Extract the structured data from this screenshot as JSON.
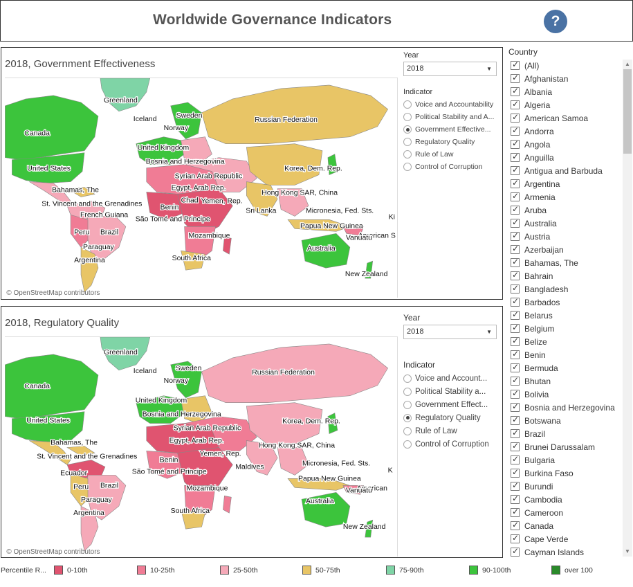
{
  "header": {
    "title": "Worldwide Governance Indicators",
    "help": "?"
  },
  "colors": {
    "p0_10": "#e05470",
    "p10_25": "#f07c95",
    "p25_50": "#f5a9b8",
    "p50_75": "#e8c566",
    "p75_90": "#7fd4a6",
    "p90_100": "#3cc43c",
    "over100": "#2a8a2a",
    "help": "#4a72a4"
  },
  "panels": [
    {
      "title": "2018, Government Effectiveness",
      "year_label": "Year",
      "year_value": "2018",
      "indicator_label": "Indicator",
      "indicators": [
        {
          "label": "Voice and Accountability",
          "selected": false
        },
        {
          "label": "Political Stability and A...",
          "selected": false
        },
        {
          "label": "Government Effective...",
          "selected": true
        },
        {
          "label": "Regulatory Quality",
          "selected": false
        },
        {
          "label": "Rule of Law",
          "selected": false
        },
        {
          "label": "Control of Corruption",
          "selected": false
        }
      ],
      "map_labels": {
        "greenland": "Greenland",
        "iceland": "Iceland",
        "sweden": "Sweden",
        "norway": "Norway",
        "canada": "Canada",
        "russia": "Russian Federation",
        "uk": "United Kingdom",
        "bosnia": "Bosnia and Herzegovina",
        "usa": "United States",
        "syria": "Syrian Arab Republic",
        "korea": "Korea, Dem. Rep.",
        "egypt": "Egypt, Arab Rep.",
        "bahamas": "Bahamas, The",
        "stvincent": "St. Vincent and the Grenadines",
        "chad": "Chad",
        "yemen": "Yemen, Rep.",
        "hongkong": "Hong Kong SAR, China",
        "benin": "Benin",
        "srilanka": "Sri Lanka",
        "micronesia": "Micronesia, Fed. Sts.",
        "frguiana": "French Guiana",
        "ki": "Ki",
        "peru": "Peru",
        "brazil": "Brazil",
        "saotome": "São Tomé and Principe",
        "png": "Papua New Guinea",
        "amsamoa": "American S",
        "vanuatu": "Vanuatu",
        "paraguay": "Paraguay",
        "mozambique": "Mozambique",
        "australia": "Australia",
        "argentina": "Argentina",
        "southafrica": "South Africa",
        "nz": "New Zealand"
      },
      "attribution": "© OpenStreetMap contributors"
    },
    {
      "title": "2018, Regulatory Quality",
      "year_label": "Year",
      "year_value": "2018",
      "indicator_label": "Indicator",
      "indicators": [
        {
          "label": "Voice and Account...",
          "selected": false
        },
        {
          "label": "Political Stability a...",
          "selected": false
        },
        {
          "label": "Government Effect...",
          "selected": false
        },
        {
          "label": "Regulatory Quality",
          "selected": true
        },
        {
          "label": "Rule of Law",
          "selected": false
        },
        {
          "label": "Control of Corruption",
          "selected": false
        }
      ],
      "map_labels": {
        "greenland": "Greenland",
        "iceland": "Iceland",
        "sweden": "Sweden",
        "norway": "Norway",
        "canada": "Canada",
        "russia": "Russian Federation",
        "uk": "United Kingdom",
        "bosnia": "Bosnia and Herzegovina",
        "usa": "United States",
        "syria": "Syrian Arab Republic",
        "korea": "Korea, Dem. Rep.",
        "egypt": "Egypt, Arab Rep.",
        "bahamas": "Bahamas, The",
        "hongkong": "Hong Kong SAR, China",
        "stvincent": "St. Vincent and the Grenadines",
        "yemen": "Yemen, Rep.",
        "benin": "Benin",
        "maldives": "Maldives",
        "micronesia": "Micronesia, Fed. Sts.",
        "ecuador": "Ecuador",
        "k": "K",
        "saotome": "São Tomé and Principe",
        "png": "Papua New Guinea",
        "peru": "Peru",
        "brazil": "Brazil",
        "amsamoa": "American",
        "vanuatu": "Vanuatu",
        "mozambique": "Mozambique",
        "paraguay": "Paraguay",
        "australia": "Australia",
        "argentina": "Argentina",
        "southafrica": "South Africa",
        "nz": "New Zealand"
      },
      "attribution": "© OpenStreetMap contributors"
    }
  ],
  "country_filter": {
    "title": "Country",
    "items": [
      "(All)",
      "Afghanistan",
      "Albania",
      "Algeria",
      "American Samoa",
      "Andorra",
      "Angola",
      "Anguilla",
      "Antigua and Barbuda",
      "Argentina",
      "Armenia",
      "Aruba",
      "Australia",
      "Austria",
      "Azerbaijan",
      "Bahamas, The",
      "Bahrain",
      "Bangladesh",
      "Barbados",
      "Belarus",
      "Belgium",
      "Belize",
      "Benin",
      "Bermuda",
      "Bhutan",
      "Bolivia",
      "Bosnia and Herzegovina",
      "Botswana",
      "Brazil",
      "Brunei Darussalam",
      "Bulgaria",
      "Burkina Faso",
      "Burundi",
      "Cambodia",
      "Cameroon",
      "Canada",
      "Cape Verde",
      "Cayman Islands"
    ]
  },
  "legend": {
    "title": "Percentile R...",
    "items": [
      {
        "label": "0-10th",
        "color": "#e05470"
      },
      {
        "label": "10-25th",
        "color": "#f07c95"
      },
      {
        "label": "25-50th",
        "color": "#f5a9b8"
      },
      {
        "label": "50-75th",
        "color": "#e8c566"
      },
      {
        "label": "75-90th",
        "color": "#7fd4a6"
      },
      {
        "label": "90-100th",
        "color": "#3cc43c"
      },
      {
        "label": "over 100",
        "color": "#2a8a2a"
      }
    ]
  }
}
